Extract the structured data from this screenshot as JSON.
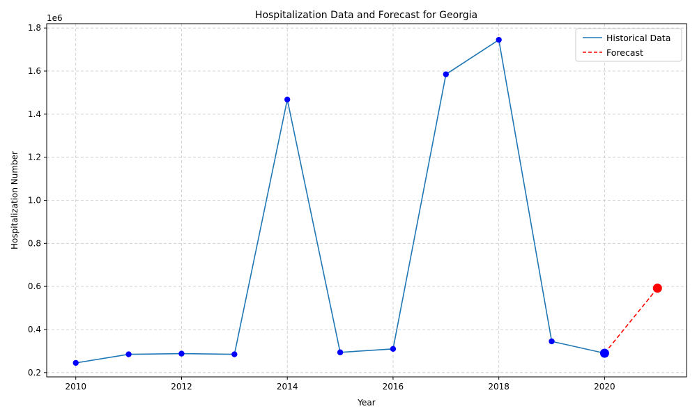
{
  "chart_data": {
    "type": "line",
    "title": "Hospitalization Data and Forecast for Georgia",
    "xlabel": "Year",
    "ylabel": "Hospitalization Number",
    "y_offset_label": "1e6",
    "xlim": [
      2009.45,
      2021.55
    ],
    "ylim": [
      180000,
      1820000
    ],
    "x_ticks": [
      2010,
      2012,
      2014,
      2016,
      2018,
      2020
    ],
    "x_tick_labels": [
      "2010",
      "2012",
      "2014",
      "2016",
      "2018",
      "2020"
    ],
    "y_ticks": [
      200000,
      400000,
      600000,
      800000,
      1000000,
      1200000,
      1400000,
      1600000,
      1800000
    ],
    "y_tick_labels": [
      "0.2",
      "0.4",
      "0.6",
      "0.8",
      "1.0",
      "1.2",
      "1.4",
      "1.6",
      "1.8"
    ],
    "grid": true,
    "legend_position": "top-right",
    "series": [
      {
        "name": "Historical Data",
        "style": "solid",
        "color": "#1f77b4",
        "marker_color": "#0000ff",
        "x": [
          2010,
          2011,
          2012,
          2013,
          2014,
          2015,
          2016,
          2017,
          2018,
          2019,
          2020
        ],
        "y": [
          245000,
          285000,
          288000,
          285000,
          1468000,
          294000,
          310000,
          1585000,
          1745000,
          345000,
          290000
        ]
      },
      {
        "name": "Forecast",
        "style": "dashed",
        "color": "#ff0000",
        "marker_color": "#ff0000",
        "x": [
          2020,
          2021
        ],
        "y": [
          290000,
          592000
        ]
      }
    ],
    "highlight_points": [
      {
        "x": 2020,
        "y": 290000,
        "color": "#0000ff"
      },
      {
        "x": 2021,
        "y": 592000,
        "color": "#ff0000"
      }
    ]
  }
}
